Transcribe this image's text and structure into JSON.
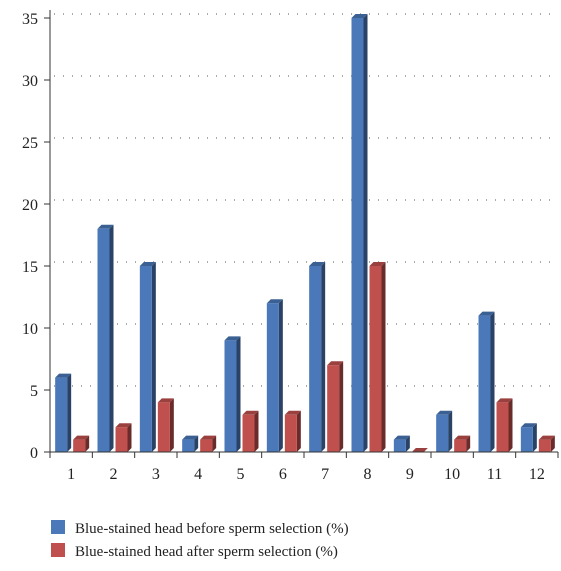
{
  "chart_data": {
    "type": "bar",
    "title": "",
    "xlabel": "",
    "ylabel": "",
    "categories": [
      "1",
      "2",
      "3",
      "4",
      "5",
      "6",
      "7",
      "8",
      "9",
      "10",
      "11",
      "12"
    ],
    "series": [
      {
        "name": "Blue-stained head before sperm selection (%)",
        "color": "#4a78b8",
        "values": [
          6,
          18,
          15,
          1,
          9,
          12,
          15,
          35,
          1,
          3,
          11,
          2
        ]
      },
      {
        "name": "Blue-stained head after sperm selection (%)",
        "color": "#c0504d",
        "values": [
          1,
          2,
          4,
          1,
          3,
          3,
          7,
          15,
          0,
          1,
          4,
          1
        ]
      }
    ],
    "ylim": [
      0,
      35
    ],
    "yticks": [
      0,
      5,
      10,
      15,
      20,
      25,
      30,
      35
    ],
    "grid": true,
    "legend": "bottom",
    "style": "3d-columns"
  }
}
